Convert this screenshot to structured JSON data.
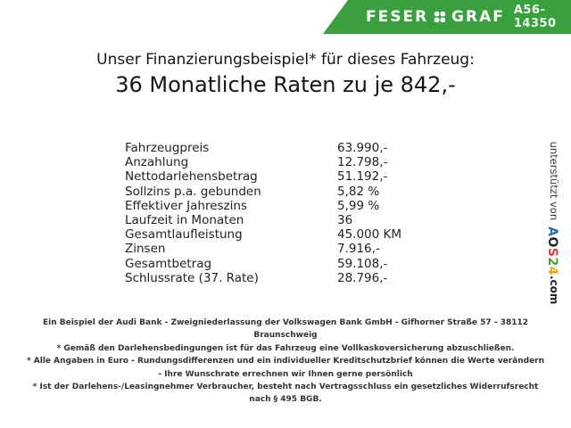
{
  "banner": {
    "brand_word1": "FESER",
    "brand_word2": "GRAF",
    "clover_icon": "four-leaf-clover",
    "vehicle_id": "A56-14350",
    "background_color": "#3aa03e"
  },
  "heading": {
    "line1": "Unser Finanzierungsbeispiel* für dieses Fahrzeug:",
    "line2": "36 Monatliche Raten zu je 842,-"
  },
  "finance_table": {
    "rows": [
      {
        "label": "Fahrzeugpreis",
        "value": "63.990,-"
      },
      {
        "label": "Anzahlung",
        "value": "12.798,-"
      },
      {
        "label": "Nettodarlehensbetrag",
        "value": "51.192,-"
      },
      {
        "label": "Sollzins p.a. gebunden",
        "value": "5,82 %"
      },
      {
        "label": "Effektiver Jahreszins",
        "value": "5,99 %"
      },
      {
        "label": "Laufzeit in Monaten",
        "value": "36"
      },
      {
        "label": "Gesamtlaufleistung",
        "value": "45.000 KM"
      },
      {
        "label": "Zinsen",
        "value": "7.916,-"
      },
      {
        "label": "Gesamtbetrag",
        "value": "59.108,-"
      },
      {
        "label": "Schlussrate (37. Rate)",
        "value": "28.796,-"
      }
    ]
  },
  "footnotes": {
    "lines": [
      "Ein Beispiel der Audi Bank - Zweigniederlassung der Volkswagen Bank GmbH - Gifhorner Straße 57 - 38112",
      "Braunschweig",
      "* Gemäß den Darlehensbedingungen ist für das Fahrzeug eine Vollkaskoversicherung abzuschließen.",
      "* Alle Angaben in Euro - Rundungsdifferenzen und ein individueller Kreditschutzbrief können die Werte verändern",
      "- Ihre Wunschrate errechnen wir Ihnen gerne persönlich",
      "* Ist der Darlehens-/Leasingnehmer Verbraucher, besteht nach Vertragsschluss ein gesetzliches Widerrufsrecht",
      "nach § 495 BGB."
    ]
  },
  "sidebar": {
    "prefix": "unterstützt von",
    "brand_letters": [
      {
        "char": "A",
        "color": "#1e6eb5"
      },
      {
        "char": "O",
        "color": "#222222"
      },
      {
        "char": "S",
        "color": "#e23a2e"
      },
      {
        "char": "2",
        "color": "#3fa32f"
      },
      {
        "char": "4",
        "color": "#f0a400"
      }
    ],
    "suffix": ".com"
  }
}
